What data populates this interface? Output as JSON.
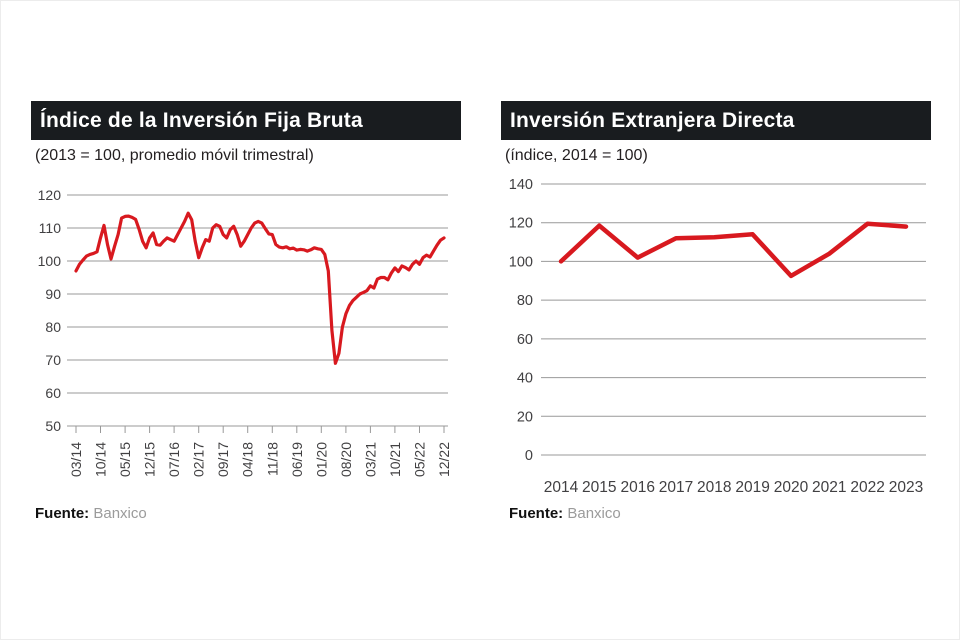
{
  "styles": {
    "accent_red": "#d8191f",
    "titlebar_bg": "#191c1f",
    "grid_gray": "#999999",
    "tick_text": "#414042",
    "source_muted": "#9b9b9b"
  },
  "panels": [
    {
      "title": "Índice de la Inversión Fija Bruta",
      "subtitle": "(2013 = 100, promedio móvil trimestral)",
      "source_label": "Fuente:",
      "source_value": "Banxico"
    },
    {
      "title": "Inversión Extranjera Directa",
      "subtitle": "(índice, 2014 = 100)",
      "source_label": "Fuente:",
      "source_value": "Banxico"
    }
  ],
  "chart_data": [
    {
      "type": "line",
      "title": "Índice de la Inversión Fija Bruta",
      "subtitle": "(2013 = 100, promedio móvil trimestral)",
      "x_frequency": "monthly",
      "x_start": "03/14",
      "x_end": "12/22",
      "x_tick_every": 7,
      "x_tick_labels": [
        "03/14",
        "10/14",
        "05/15",
        "12/15",
        "07/16",
        "02/17",
        "09/17",
        "04/18",
        "11/18",
        "06/19",
        "01/20",
        "08/20",
        "03/21",
        "10/21",
        "05/22",
        "12/22"
      ],
      "values": [
        97,
        99,
        100.3,
        101.5,
        102,
        102.3,
        102.8,
        107,
        110.8,
        105,
        100.6,
        104.5,
        108,
        113,
        113.5,
        113.6,
        113.2,
        112.6,
        109.6,
        106,
        104,
        107,
        108.5,
        105,
        104.8,
        106,
        107,
        106.5,
        106,
        108,
        110,
        112,
        114.5,
        112.5,
        106,
        101,
        104,
        106.5,
        106,
        110,
        111,
        110.5,
        108,
        107,
        109.5,
        110.5,
        108,
        104.5,
        106,
        108,
        110,
        111.5,
        112,
        111.5,
        109.8,
        108.2,
        108,
        105,
        104.2,
        104,
        104.3,
        103.7,
        103.9,
        103.3,
        103.5,
        103.4,
        103,
        103.4,
        104,
        103.7,
        103.5,
        102,
        97,
        79,
        69,
        72,
        80,
        84,
        86.5,
        88,
        89,
        90,
        90.5,
        91,
        92.5,
        91.8,
        94.5,
        95,
        95,
        94.3,
        96.4,
        97.9,
        96.8,
        98.5,
        98,
        97.3,
        99,
        100,
        99,
        101,
        101.8,
        101.2,
        103,
        104.8,
        106.3,
        107
      ],
      "y_ticks": [
        120,
        110,
        100,
        90,
        80,
        70,
        60,
        50
      ],
      "ylim": [
        50,
        120
      ],
      "line_color": "#d8191f",
      "grid": "horizontal",
      "legend": "none"
    },
    {
      "type": "line",
      "title": "Inversión Extranjera Directa",
      "subtitle": "(índice, 2014 = 100)",
      "categories": [
        "2014",
        "2015",
        "2016",
        "2017",
        "2018",
        "2019",
        "2020",
        "2021",
        "2022",
        "2023"
      ],
      "values": [
        100,
        118.5,
        102,
        112,
        112.5,
        114,
        92.5,
        104,
        119.5,
        118
      ],
      "y_ticks": [
        140,
        120,
        100,
        80,
        60,
        40,
        20,
        0
      ],
      "ylim": [
        0,
        140
      ],
      "line_color": "#d8191f",
      "grid": "horizontal",
      "legend": "none"
    }
  ]
}
